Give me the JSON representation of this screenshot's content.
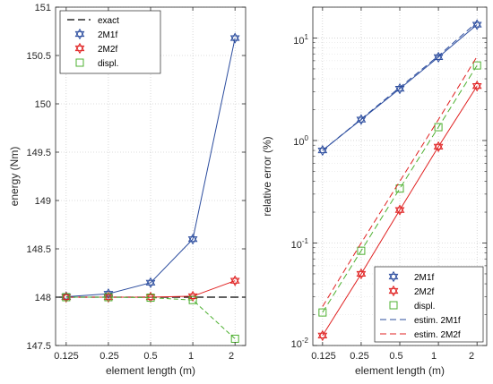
{
  "chart_data": [
    {
      "type": "line",
      "xlabel": "element length (m)",
      "ylabel": "energy (Nm)",
      "x": [
        0.125,
        0.25,
        0.5,
        1,
        2
      ],
      "xticks": [
        "0.125",
        "0.25",
        "0.5",
        "1",
        "2"
      ],
      "x_scale": "log2",
      "ylim": [
        147.5,
        151
      ],
      "yticks": [
        "147.5",
        "148",
        "148.5",
        "149",
        "149.5",
        "150",
        "150.5",
        "151"
      ],
      "grid": "on (dotted)",
      "legend_placement": "top-left",
      "exact": {
        "name": "exact",
        "value": 148.0,
        "color": "#000000"
      },
      "series": [
        {
          "name": "2M1f",
          "values": [
            148.005,
            148.035,
            148.15,
            148.6,
            150.68
          ],
          "color": "#2b4c9e",
          "marker": "hexagram"
        },
        {
          "name": "2M2f",
          "values": [
            148.0,
            148.0,
            148.0,
            148.01,
            148.17
          ],
          "color": "#e02020",
          "marker": "hexagram"
        },
        {
          "name": "displ.",
          "values": [
            148.0,
            148.0,
            147.995,
            147.97,
            147.57
          ],
          "color": "#4db030",
          "marker": "square"
        }
      ]
    },
    {
      "type": "line",
      "xlabel": "element length (m)",
      "ylabel": "relative error (%)",
      "x": [
        0.125,
        0.25,
        0.5,
        1,
        2
      ],
      "xticks": [
        "0.125",
        "0.25",
        "0.5",
        "1",
        "2"
      ],
      "x_scale": "log2",
      "y_scale": "log10",
      "ylim": [
        0.01,
        20
      ],
      "grid": "on (dotted)",
      "legend_placement": "bottom-right",
      "series": [
        {
          "name": "2M1f",
          "values": [
            0.8,
            1.6,
            3.2,
            6.5,
            13.5
          ],
          "color": "#2b4c9e",
          "marker": "hexagram",
          "line": "solid"
        },
        {
          "name": "2M2f",
          "values": [
            0.0125,
            0.05,
            0.21,
            0.87,
            3.4
          ],
          "color": "#e02020",
          "marker": "hexagram",
          "line": "solid"
        },
        {
          "name": "displ.",
          "values": [
            0.021,
            0.084,
            0.34,
            1.35,
            5.4
          ],
          "color": "#4db030",
          "marker": "square",
          "line": "dashed"
        },
        {
          "name": "estim. 2M1f",
          "values": [
            0.8,
            1.62,
            3.3,
            6.7,
            14.3
          ],
          "color": "#2b4c9e",
          "marker": "none",
          "line": "dashed"
        },
        {
          "name": "estim. 2M2f",
          "values": [
            0.024,
            0.1,
            0.4,
            1.6,
            6.6
          ],
          "color": "#e02020",
          "marker": "none",
          "line": "dashed"
        }
      ]
    }
  ],
  "tick_labels": {
    "left_x": [
      "0.125",
      "0.25",
      "0.5",
      "1",
      "2"
    ],
    "left_y": [
      "147.5",
      "148",
      "148.5",
      "149",
      "149.5",
      "150",
      "150.5",
      "151"
    ],
    "right_x": [
      "0.125",
      "0.25",
      "0.5",
      "1",
      "2"
    ],
    "right_y_base": [
      "10",
      "10",
      "10",
      "10"
    ],
    "right_y_exp": [
      "-2",
      "-1",
      "0",
      "1"
    ]
  },
  "labels": {
    "left_xlabel": "element length (m)",
    "left_ylabel": "energy (Nm)",
    "right_xlabel": "element length (m)",
    "right_ylabel": "relative error (%)"
  },
  "legend_left": [
    "exact",
    "2M1f",
    "2M2f",
    "displ."
  ],
  "legend_right": [
    "2M1f",
    "2M2f",
    "displ.",
    "estim. 2M1f",
    "estim. 2M2f"
  ]
}
